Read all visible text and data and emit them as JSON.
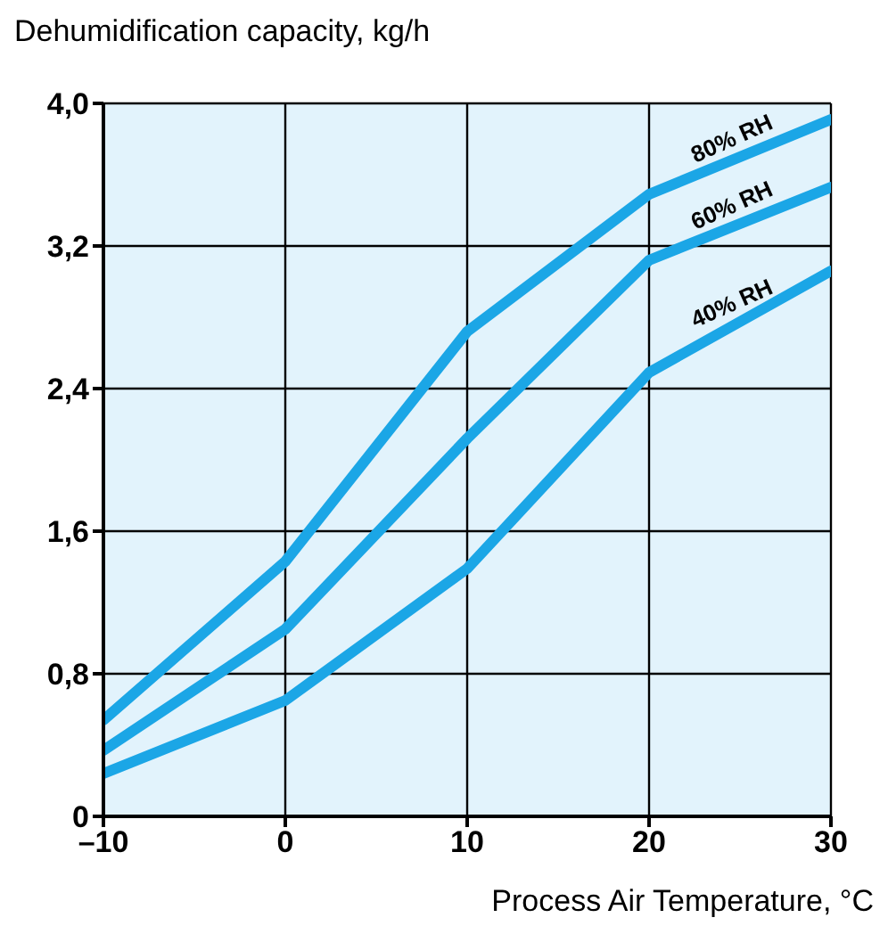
{
  "chart_data": {
    "type": "line",
    "ylabel": "Dehumidification capacity, kg/h",
    "xlabel": "Process Air Temperature, °C",
    "x": [
      -10,
      0,
      10,
      20,
      30
    ],
    "series": [
      {
        "name": "80% RH",
        "color": "#1ba6e6",
        "values": [
          0.54,
          1.43,
          2.72,
          3.49,
          3.91
        ]
      },
      {
        "name": "60% RH",
        "color": "#1ba6e6",
        "values": [
          0.37,
          1.05,
          2.12,
          3.12,
          3.53
        ]
      },
      {
        "name": "40% RH",
        "color": "#1ba6e6",
        "values": [
          0.24,
          0.65,
          1.39,
          2.49,
          3.06
        ]
      }
    ],
    "xlim": [
      -10,
      30
    ],
    "xticks": [
      {
        "value": -10,
        "label": "–10"
      },
      0,
      10,
      20,
      30
    ],
    "ylim": [
      0,
      4
    ],
    "yticks": [
      0,
      {
        "value": 0.8,
        "label": "0,8"
      },
      {
        "value": 1.6,
        "label": "1,6"
      },
      {
        "value": 2.4,
        "label": "2,4"
      },
      {
        "value": 3.2,
        "label": "3,2"
      },
      {
        "value": 4,
        "label": "4,0"
      }
    ],
    "grid": true,
    "legend": false,
    "marker": "none",
    "line_style": "solid"
  }
}
